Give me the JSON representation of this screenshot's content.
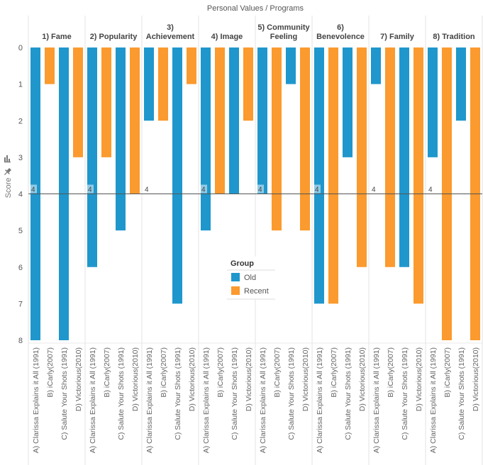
{
  "chart_data": {
    "type": "bar",
    "title": "Personal Values  /  Programs",
    "ylabel": "Score",
    "xlabel": "",
    "ylim": [
      0,
      8
    ],
    "y_inverted": true,
    "y_ticks": [
      "0",
      "1",
      "2",
      "3",
      "4",
      "5",
      "6",
      "7",
      "8"
    ],
    "grid": false,
    "reference_line": {
      "value": 4,
      "label": "4"
    },
    "categories": [
      "A) Clarissa Explains it All (1991)",
      "B) iCarly(2007)",
      "C) Salute Your Shots (1991)",
      "D) Victorious(2010)"
    ],
    "category_groups": [
      "Old",
      "Recent",
      "Old",
      "Recent"
    ],
    "panels": [
      {
        "title": [
          "1) Fame"
        ],
        "values": [
          8,
          1,
          8,
          3
        ]
      },
      {
        "title": [
          "2) Popularity"
        ],
        "values": [
          6,
          3,
          5,
          4
        ]
      },
      {
        "title": [
          "3)",
          "Achievement"
        ],
        "values": [
          2,
          2,
          7,
          1
        ]
      },
      {
        "title": [
          "4) Image"
        ],
        "values": [
          5,
          4,
          4,
          2
        ]
      },
      {
        "title": [
          "5) Community",
          "Feeling"
        ],
        "values": [
          4,
          5,
          1,
          5
        ]
      },
      {
        "title": [
          "6)",
          "Benevolence"
        ],
        "values": [
          7,
          7,
          3,
          6
        ]
      },
      {
        "title": [
          "7) Family"
        ],
        "values": [
          1,
          6,
          6,
          7
        ]
      },
      {
        "title": [
          "8) Tradition"
        ],
        "values": [
          3,
          8,
          2,
          8
        ]
      }
    ],
    "legend": {
      "title": "Group",
      "placement": "center",
      "items": [
        {
          "name": "Old",
          "color": "#1f97cc"
        },
        {
          "name": "Recent",
          "color": "#fb9a2e"
        }
      ]
    }
  },
  "icons": {
    "chart_icon": "bar-chart-icon",
    "pin_icon": "pin-icon"
  }
}
